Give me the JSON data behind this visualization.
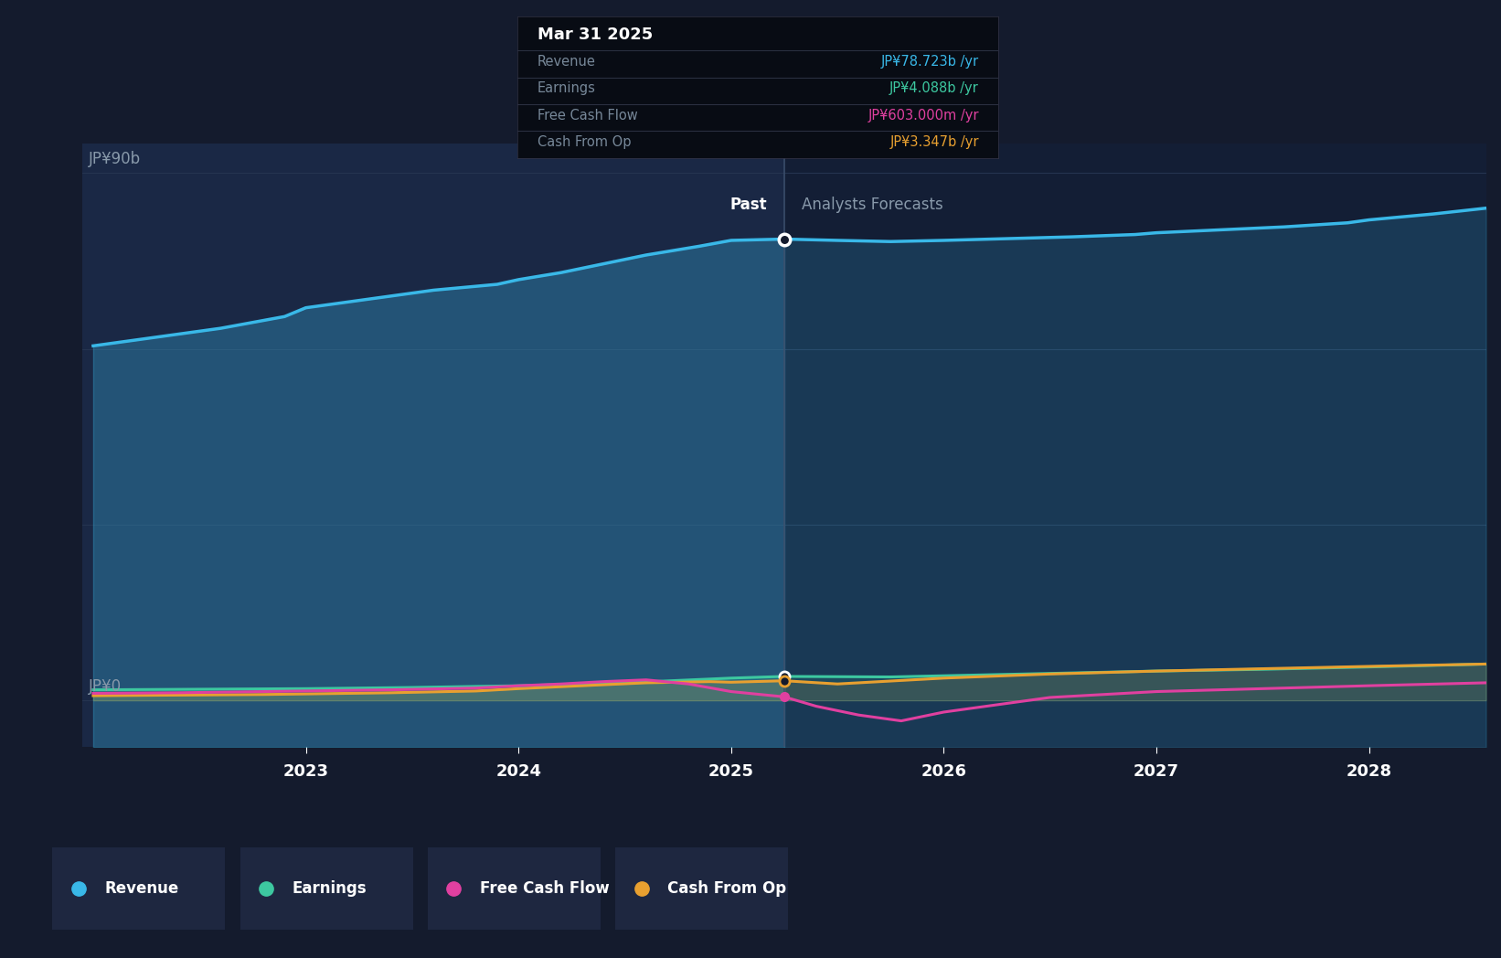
{
  "background_color": "#141B2D",
  "plot_bg_color": "#16213A",
  "past_bg_color": "#1A2845",
  "future_bg_color": "#131E35",
  "grid_color": "#253450",
  "y_label_90b": "JP¥90b",
  "y_label_0": "JP¥0",
  "past_label": "Past",
  "forecast_label": "Analysts Forecasts",
  "divider_x": 2025.25,
  "x_ticks": [
    2023,
    2024,
    2025,
    2026,
    2027,
    2028
  ],
  "x_min": 2021.95,
  "x_max": 2028.55,
  "y_min": -8,
  "y_max": 95,
  "tooltip": {
    "date": "Mar 31 2025",
    "revenue_label": "Revenue",
    "revenue_value": "JP¥78.723b /yr",
    "revenue_color": "#39B8E8",
    "earnings_label": "Earnings",
    "earnings_value": "JP¥4.088b /yr",
    "earnings_color": "#3DC8A0",
    "fcf_label": "Free Cash Flow",
    "fcf_value": "JP¥603.000m /yr",
    "fcf_color": "#E040A0",
    "cfo_label": "Cash From Op",
    "cfo_value": "JP¥3.347b /yr",
    "cfo_color": "#E8A030"
  },
  "revenue_color": "#39B8E8",
  "earnings_color": "#3DC8A0",
  "fcf_color": "#E040A0",
  "cfo_color": "#E8A030",
  "revenue_past_x": [
    2022.0,
    2022.3,
    2022.6,
    2022.9,
    2023.0,
    2023.3,
    2023.6,
    2023.9,
    2024.0,
    2024.2,
    2024.4,
    2024.6,
    2024.85,
    2025.0,
    2025.25
  ],
  "revenue_past_y": [
    60.5,
    62.0,
    63.5,
    65.5,
    67.0,
    68.5,
    70.0,
    71.0,
    71.8,
    73.0,
    74.5,
    76.0,
    77.5,
    78.5,
    78.723
  ],
  "revenue_future_x": [
    2025.25,
    2025.5,
    2025.75,
    2026.0,
    2026.3,
    2026.6,
    2026.9,
    2027.0,
    2027.3,
    2027.6,
    2027.9,
    2028.0,
    2028.3,
    2028.55
  ],
  "revenue_future_y": [
    78.723,
    78.5,
    78.3,
    78.5,
    78.8,
    79.1,
    79.5,
    79.8,
    80.3,
    80.8,
    81.5,
    82.0,
    83.0,
    84.0
  ],
  "earnings_past_x": [
    2022.0,
    2022.5,
    2023.0,
    2023.5,
    2024.0,
    2024.5,
    2025.0,
    2025.25
  ],
  "earnings_past_y": [
    1.8,
    1.9,
    2.0,
    2.2,
    2.5,
    3.0,
    3.8,
    4.088
  ],
  "earnings_future_x": [
    2025.25,
    2025.75,
    2026.0,
    2026.5,
    2027.0,
    2027.5,
    2028.0,
    2028.55
  ],
  "earnings_future_y": [
    4.088,
    4.0,
    4.2,
    4.6,
    5.0,
    5.3,
    5.7,
    6.2
  ],
  "fcf_past_x": [
    2022.0,
    2022.4,
    2022.8,
    2023.0,
    2023.4,
    2023.8,
    2024.0,
    2024.2,
    2024.4,
    2024.6,
    2024.8,
    2025.0,
    2025.25
  ],
  "fcf_past_y": [
    1.2,
    1.3,
    1.5,
    1.6,
    1.8,
    2.1,
    2.5,
    2.8,
    3.2,
    3.5,
    2.8,
    1.5,
    0.603
  ],
  "fcf_future_x": [
    2025.25,
    2025.4,
    2025.6,
    2025.8,
    2026.0,
    2026.5,
    2027.0,
    2027.5,
    2028.0,
    2028.55
  ],
  "fcf_future_y": [
    0.603,
    -1.0,
    -2.5,
    -3.5,
    -2.0,
    0.5,
    1.5,
    2.0,
    2.5,
    3.0
  ],
  "cfo_past_x": [
    2022.0,
    2022.4,
    2022.8,
    2023.0,
    2023.4,
    2023.8,
    2024.0,
    2024.3,
    2024.6,
    2024.9,
    2025.0,
    2025.25
  ],
  "cfo_past_y": [
    0.8,
    0.9,
    1.0,
    1.1,
    1.3,
    1.6,
    2.0,
    2.5,
    3.0,
    3.2,
    3.1,
    3.347
  ],
  "cfo_future_x": [
    2025.25,
    2025.5,
    2026.0,
    2026.5,
    2027.0,
    2027.5,
    2028.0,
    2028.55
  ],
  "cfo_future_y": [
    3.347,
    2.8,
    3.8,
    4.5,
    5.0,
    5.4,
    5.8,
    6.2
  ]
}
